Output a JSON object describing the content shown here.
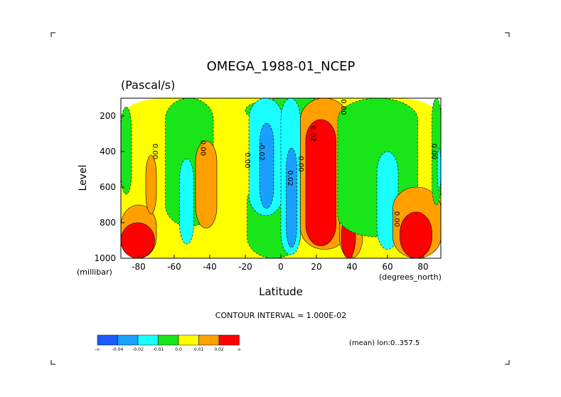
{
  "chart_data": {
    "type": "heatmap",
    "title": "OMEGA_1988-01_NCEP",
    "subtitle": "(Pascal/s)",
    "xlabel": "Latitude",
    "ylabel": "Level",
    "x_units": "(degrees_north)",
    "y_units": "(millibar)",
    "xlim": [
      -90,
      90
    ],
    "ylim": [
      1000,
      100
    ],
    "x_ticks": [
      -80,
      -60,
      -40,
      -20,
      0,
      20,
      40,
      60,
      80
    ],
    "y_ticks": [
      200,
      400,
      600,
      800,
      1000
    ],
    "contour_interval_text": "CONTOUR INTERVAL = 1.000E-02",
    "footer_note": "(mean) lon:0..357.5",
    "legend": {
      "colors": [
        "#1a5cff",
        "#19a0ff",
        "#19ffff",
        "#19e619",
        "#ffff00",
        "#ffa000",
        "#ff0000"
      ],
      "labels": [
        "-∞",
        "-0.04",
        "-0.02",
        "-0.01",
        "0.0",
        "0.01",
        "0.02",
        "∞"
      ]
    },
    "contour_labels": [
      {
        "text": "0.00",
        "lat": -72,
        "lev": 400
      },
      {
        "text": "0.00",
        "lat": -45,
        "lev": 380
      },
      {
        "text": "0.00",
        "lat": -20,
        "lev": 450
      },
      {
        "text": "-0.02",
        "lat": -12,
        "lev": 400
      },
      {
        "text": "0.02",
        "lat": 4,
        "lev": 550
      },
      {
        "text": "0.00",
        "lat": 10,
        "lev": 470
      },
      {
        "text": "0.02",
        "lat": 17,
        "lev": 300
      },
      {
        "text": "0.00",
        "lat": 34,
        "lev": 150
      },
      {
        "text": "0.00",
        "lat": 64,
        "lev": 780
      },
      {
        "text": "0.00",
        "lat": 85,
        "lev": 400
      }
    ],
    "regions": [
      {
        "level": "0.0",
        "lat": [
          -90,
          90
        ],
        "lev": [
          100,
          1000
        ]
      },
      {
        "level": "-0.01",
        "lat": [
          -65,
          -38
        ],
        "lev": [
          100,
          820
        ]
      },
      {
        "level": "0.01",
        "lat": [
          -90,
          -70
        ],
        "lev": [
          700,
          1000
        ]
      },
      {
        "level": "0.01",
        "lat": [
          -76,
          -70
        ],
        "lev": [
          420,
          750
        ]
      },
      {
        "level": "0.02",
        "lat": [
          -90,
          -71
        ],
        "lev": [
          800,
          1000
        ]
      },
      {
        "level": "-0.01",
        "lat": [
          -90,
          -84
        ],
        "lev": [
          150,
          640
        ]
      },
      {
        "level": "-0.02",
        "lat": [
          -57,
          -49
        ],
        "lev": [
          440,
          920
        ]
      },
      {
        "level": "0.01",
        "lat": [
          -48,
          -36
        ],
        "lev": [
          340,
          830
        ]
      },
      {
        "level": "-0.01",
        "lat": [
          -19,
          11
        ],
        "lev": [
          560,
          1000
        ]
      },
      {
        "level": "-0.01",
        "lat": [
          -20,
          36
        ],
        "lev": [
          100,
          240
        ]
      },
      {
        "level": "-0.02",
        "lat": [
          -18,
          1
        ],
        "lev": [
          100,
          760
        ]
      },
      {
        "level": "-0.02",
        "lat": [
          0,
          11
        ],
        "lev": [
          100,
          980
        ]
      },
      {
        "level": "-0.04",
        "lat": [
          -12,
          -4
        ],
        "lev": [
          240,
          720
        ]
      },
      {
        "level": "-0.04",
        "lat": [
          3,
          9
        ],
        "lev": [
          380,
          940
        ]
      },
      {
        "level": "0.01",
        "lat": [
          11,
          38
        ],
        "lev": [
          100,
          950
        ]
      },
      {
        "level": "0.02",
        "lat": [
          14,
          31
        ],
        "lev": [
          220,
          930
        ]
      },
      {
        "level": "0.01",
        "lat": [
          33,
          46
        ],
        "lev": [
          620,
          1000
        ]
      },
      {
        "level": "0.02",
        "lat": [
          34,
          42
        ],
        "lev": [
          760,
          1000
        ]
      },
      {
        "level": "-0.01",
        "lat": [
          32,
          77
        ],
        "lev": [
          100,
          880
        ]
      },
      {
        "level": "-0.02",
        "lat": [
          54,
          66
        ],
        "lev": [
          400,
          950
        ]
      },
      {
        "level": "0.01",
        "lat": [
          63,
          90
        ],
        "lev": [
          600,
          1000
        ]
      },
      {
        "level": "0.02",
        "lat": [
          67,
          85
        ],
        "lev": [
          740,
          1000
        ]
      },
      {
        "level": "-0.01",
        "lat": [
          85,
          90
        ],
        "lev": [
          100,
          700
        ]
      },
      {
        "level": "-0.02",
        "lat": [
          88,
          90
        ],
        "lev": [
          380,
          620
        ]
      }
    ]
  }
}
